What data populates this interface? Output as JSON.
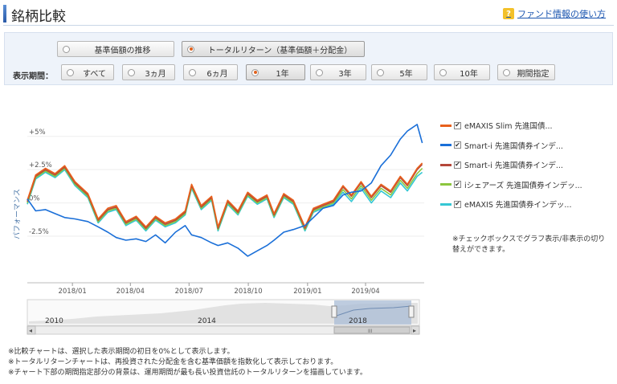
{
  "header": {
    "title": "銘柄比較",
    "help_label": "ファンド情報の使い方",
    "help_icon": "?"
  },
  "mode_options": [
    {
      "label": "基準価額の推移",
      "selected": false
    },
    {
      "label": "トータルリターン（基準価額＋分配金）",
      "selected": true
    }
  ],
  "period": {
    "label": "表示期間：",
    "options": [
      {
        "label": "すべて",
        "selected": false
      },
      {
        "label": "3ヵ月",
        "selected": false
      },
      {
        "label": "6ヵ月",
        "selected": false
      },
      {
        "label": "1年",
        "selected": true
      },
      {
        "label": "3年",
        "selected": false
      },
      {
        "label": "5年",
        "selected": false
      },
      {
        "label": "10年",
        "selected": false
      },
      {
        "label": "期間指定",
        "selected": false
      }
    ]
  },
  "legend": {
    "check_mark": "✔",
    "note": "※チェックボックスでグラフ表示/非表示の切り替えができます。"
  },
  "navigator": {
    "year_labels": [
      "2010",
      "2014",
      "2018"
    ],
    "scroll_left": "◂",
    "scroll_right": "▸",
    "scroll_thumb": "III"
  },
  "footnotes": [
    "※比較チャートは、選択した表示期間の初日を0%として表示します。",
    "※トータルリターンチャートは、再投資された分配金を含む基準価額を指数化して表示しております。",
    "※チャート下部の期間指定部分の背景は、運用期間が最も長い投資信託のトータルリターンを描画しています。"
  ],
  "chart_data": {
    "type": "line",
    "ylabel": "パフォーマンス",
    "y_tick_labels": [
      "+5%",
      "+2.5%",
      "0%",
      "-2.5%"
    ],
    "y_ticks": [
      5,
      2.5,
      0,
      -2.5
    ],
    "ylim": [
      -6.0,
      7.4
    ],
    "x_tick_labels": [
      "2018/01",
      "2018/04",
      "2018/07",
      "2018/10",
      "2019/01",
      "2019/04"
    ],
    "x_ticks": [
      "2018-01-01",
      "2018-04-01",
      "2018-07-01",
      "2018-10-01",
      "2019-01-01",
      "2019-04-01"
    ],
    "xlim": [
      "2017-10-23",
      "2019-07-01"
    ],
    "series": [
      {
        "name": "eMAXIS Slim 先進国債...",
        "color": "#e8601c",
        "points": [
          [
            "2017-10-23",
            0.2
          ],
          [
            "2017-11-05",
            2.1
          ],
          [
            "2017-11-20",
            2.6
          ],
          [
            "2017-12-05",
            2.2
          ],
          [
            "2017-12-20",
            2.8
          ],
          [
            "2018-01-05",
            1.6
          ],
          [
            "2018-01-25",
            0.7
          ],
          [
            "2018-02-10",
            -1.2
          ],
          [
            "2018-02-25",
            -0.4
          ],
          [
            "2018-03-10",
            -0.2
          ],
          [
            "2018-03-25",
            -1.4
          ],
          [
            "2018-04-10",
            -1.0
          ],
          [
            "2018-04-25",
            -1.8
          ],
          [
            "2018-05-10",
            -1.0
          ],
          [
            "2018-05-25",
            -1.5
          ],
          [
            "2018-06-10",
            -1.2
          ],
          [
            "2018-06-25",
            -0.6
          ],
          [
            "2018-07-05",
            1.4
          ],
          [
            "2018-07-20",
            -0.2
          ],
          [
            "2018-08-05",
            0.5
          ],
          [
            "2018-08-15",
            -1.8
          ],
          [
            "2018-08-30",
            0.2
          ],
          [
            "2018-09-15",
            -0.6
          ],
          [
            "2018-09-30",
            0.8
          ],
          [
            "2018-10-15",
            0.2
          ],
          [
            "2018-10-30",
            0.6
          ],
          [
            "2018-11-10",
            -0.8
          ],
          [
            "2018-11-25",
            0.7
          ],
          [
            "2018-12-10",
            0.2
          ],
          [
            "2018-12-28",
            -1.8
          ],
          [
            "2019-01-10",
            -0.4
          ],
          [
            "2019-01-25",
            -0.1
          ],
          [
            "2019-02-10",
            0.2
          ],
          [
            "2019-02-25",
            1.3
          ],
          [
            "2019-03-10",
            0.6
          ],
          [
            "2019-03-25",
            1.6
          ],
          [
            "2019-04-10",
            0.5
          ],
          [
            "2019-04-25",
            1.4
          ],
          [
            "2019-05-10",
            0.9
          ],
          [
            "2019-05-25",
            2.0
          ],
          [
            "2019-06-05",
            1.4
          ],
          [
            "2019-06-20",
            2.6
          ],
          [
            "2019-06-28",
            3.0
          ]
        ]
      },
      {
        "name": "Smart-i 先進国債券インデ...",
        "color": "#1a6fd8",
        "points": [
          [
            "2017-10-23",
            0.3
          ],
          [
            "2017-11-05",
            -0.6
          ],
          [
            "2017-11-20",
            -0.5
          ],
          [
            "2017-12-05",
            -0.8
          ],
          [
            "2017-12-20",
            -1.1
          ],
          [
            "2018-01-05",
            -1.2
          ],
          [
            "2018-01-25",
            -1.4
          ],
          [
            "2018-02-10",
            -1.8
          ],
          [
            "2018-02-25",
            -2.2
          ],
          [
            "2018-03-10",
            -2.6
          ],
          [
            "2018-03-25",
            -2.8
          ],
          [
            "2018-04-10",
            -2.7
          ],
          [
            "2018-04-25",
            -2.9
          ],
          [
            "2018-05-10",
            -2.4
          ],
          [
            "2018-05-25",
            -3.0
          ],
          [
            "2018-06-10",
            -2.2
          ],
          [
            "2018-06-25",
            -1.7
          ],
          [
            "2018-07-05",
            -2.4
          ],
          [
            "2018-07-20",
            -2.6
          ],
          [
            "2018-08-05",
            -3.0
          ],
          [
            "2018-08-15",
            -3.2
          ],
          [
            "2018-08-30",
            -3.0
          ],
          [
            "2018-09-15",
            -3.4
          ],
          [
            "2018-09-30",
            -4.0
          ],
          [
            "2018-10-15",
            -3.6
          ],
          [
            "2018-10-30",
            -3.2
          ],
          [
            "2018-11-10",
            -2.8
          ],
          [
            "2018-11-25",
            -2.2
          ],
          [
            "2018-12-10",
            -2.0
          ],
          [
            "2018-12-28",
            -1.7
          ],
          [
            "2019-01-10",
            -1.1
          ],
          [
            "2019-01-25",
            -0.4
          ],
          [
            "2019-02-10",
            -0.2
          ],
          [
            "2019-02-25",
            0.6
          ],
          [
            "2019-03-10",
            0.8
          ],
          [
            "2019-03-25",
            0.9
          ],
          [
            "2019-04-10",
            1.5
          ],
          [
            "2019-04-25",
            2.8
          ],
          [
            "2019-05-10",
            3.6
          ],
          [
            "2019-05-25",
            4.8
          ],
          [
            "2019-06-05",
            5.4
          ],
          [
            "2019-06-20",
            5.9
          ],
          [
            "2019-06-28",
            4.5
          ]
        ]
      },
      {
        "name": "Smart-i 先進国債券インデ...",
        "color": "#b5473a",
        "points": [
          [
            "2017-10-23",
            0.1
          ],
          [
            "2017-11-05",
            2.0
          ],
          [
            "2017-11-20",
            2.5
          ],
          [
            "2017-12-05",
            2.1
          ],
          [
            "2017-12-20",
            2.7
          ],
          [
            "2018-01-05",
            1.5
          ],
          [
            "2018-01-25",
            0.6
          ],
          [
            "2018-02-10",
            -1.3
          ],
          [
            "2018-02-25",
            -0.5
          ],
          [
            "2018-03-10",
            -0.3
          ],
          [
            "2018-03-25",
            -1.5
          ],
          [
            "2018-04-10",
            -1.1
          ],
          [
            "2018-04-25",
            -1.9
          ],
          [
            "2018-05-10",
            -1.1
          ],
          [
            "2018-05-25",
            -1.6
          ],
          [
            "2018-06-10",
            -1.3
          ],
          [
            "2018-06-25",
            -0.7
          ],
          [
            "2018-07-05",
            1.3
          ],
          [
            "2018-07-20",
            -0.3
          ],
          [
            "2018-08-05",
            0.4
          ],
          [
            "2018-08-15",
            -1.9
          ],
          [
            "2018-08-30",
            0.1
          ],
          [
            "2018-09-15",
            -0.7
          ],
          [
            "2018-09-30",
            0.7
          ],
          [
            "2018-10-15",
            0.1
          ],
          [
            "2018-10-30",
            0.5
          ],
          [
            "2018-11-10",
            -0.9
          ],
          [
            "2018-11-25",
            0.6
          ],
          [
            "2018-12-10",
            0.1
          ],
          [
            "2018-12-28",
            -1.9
          ],
          [
            "2019-01-10",
            -0.5
          ],
          [
            "2019-01-25",
            -0.2
          ],
          [
            "2019-02-10",
            0.1
          ],
          [
            "2019-02-25",
            1.2
          ],
          [
            "2019-03-10",
            0.5
          ],
          [
            "2019-03-25",
            1.5
          ],
          [
            "2019-04-10",
            0.4
          ],
          [
            "2019-04-25",
            1.3
          ],
          [
            "2019-05-10",
            0.8
          ],
          [
            "2019-05-25",
            1.9
          ],
          [
            "2019-06-05",
            1.3
          ],
          [
            "2019-06-20",
            2.5
          ],
          [
            "2019-06-28",
            2.9
          ]
        ]
      },
      {
        "name": "iシェアーズ 先進国債券インデッ...",
        "color": "#8cc63e",
        "points": [
          [
            "2017-10-23",
            0.0
          ],
          [
            "2017-11-05",
            1.9
          ],
          [
            "2017-11-20",
            2.4
          ],
          [
            "2017-12-05",
            2.0
          ],
          [
            "2017-12-20",
            2.6
          ],
          [
            "2018-01-05",
            1.4
          ],
          [
            "2018-01-25",
            0.5
          ],
          [
            "2018-02-10",
            -1.4
          ],
          [
            "2018-02-25",
            -0.6
          ],
          [
            "2018-03-10",
            -0.4
          ],
          [
            "2018-03-25",
            -1.6
          ],
          [
            "2018-04-10",
            -1.2
          ],
          [
            "2018-04-25",
            -2.0
          ],
          [
            "2018-05-10",
            -1.2
          ],
          [
            "2018-05-25",
            -1.7
          ],
          [
            "2018-06-10",
            -1.4
          ],
          [
            "2018-06-25",
            -0.8
          ],
          [
            "2018-07-05",
            1.2
          ],
          [
            "2018-07-20",
            -0.4
          ],
          [
            "2018-08-05",
            0.3
          ],
          [
            "2018-08-15",
            -2.0
          ],
          [
            "2018-08-30",
            0.0
          ],
          [
            "2018-09-15",
            -0.8
          ],
          [
            "2018-09-30",
            0.6
          ],
          [
            "2018-10-15",
            0.0
          ],
          [
            "2018-10-30",
            0.4
          ],
          [
            "2018-11-10",
            -1.0
          ],
          [
            "2018-11-25",
            0.5
          ],
          [
            "2018-12-10",
            0.0
          ],
          [
            "2018-12-28",
            -2.0
          ],
          [
            "2019-01-10",
            -0.6
          ],
          [
            "2019-01-25",
            -0.3
          ],
          [
            "2019-02-10",
            0.0
          ],
          [
            "2019-02-25",
            1.0
          ],
          [
            "2019-03-10",
            0.3
          ],
          [
            "2019-03-25",
            1.3
          ],
          [
            "2019-04-10",
            0.2
          ],
          [
            "2019-04-25",
            1.1
          ],
          [
            "2019-05-10",
            0.6
          ],
          [
            "2019-05-25",
            1.7
          ],
          [
            "2019-06-05",
            1.1
          ],
          [
            "2019-06-20",
            2.2
          ],
          [
            "2019-06-28",
            2.6
          ]
        ]
      },
      {
        "name": "eMAXIS 先進国債券インデッ...",
        "color": "#35c7d4",
        "points": [
          [
            "2017-10-23",
            -0.1
          ],
          [
            "2017-11-05",
            1.8
          ],
          [
            "2017-11-20",
            2.3
          ],
          [
            "2017-12-05",
            1.9
          ],
          [
            "2017-12-20",
            2.5
          ],
          [
            "2018-01-05",
            1.3
          ],
          [
            "2018-01-25",
            0.4
          ],
          [
            "2018-02-10",
            -1.5
          ],
          [
            "2018-02-25",
            -0.7
          ],
          [
            "2018-03-10",
            -0.5
          ],
          [
            "2018-03-25",
            -1.7
          ],
          [
            "2018-04-10",
            -1.3
          ],
          [
            "2018-04-25",
            -2.1
          ],
          [
            "2018-05-10",
            -1.3
          ],
          [
            "2018-05-25",
            -1.8
          ],
          [
            "2018-06-10",
            -1.5
          ],
          [
            "2018-06-25",
            -0.9
          ],
          [
            "2018-07-05",
            1.1
          ],
          [
            "2018-07-20",
            -0.5
          ],
          [
            "2018-08-05",
            0.2
          ],
          [
            "2018-08-15",
            -2.1
          ],
          [
            "2018-08-30",
            -0.1
          ],
          [
            "2018-09-15",
            -0.9
          ],
          [
            "2018-09-30",
            0.5
          ],
          [
            "2018-10-15",
            -0.1
          ],
          [
            "2018-10-30",
            0.3
          ],
          [
            "2018-11-10",
            -1.1
          ],
          [
            "2018-11-25",
            0.4
          ],
          [
            "2018-12-10",
            -0.1
          ],
          [
            "2018-12-28",
            -2.1
          ],
          [
            "2019-01-10",
            -0.7
          ],
          [
            "2019-01-25",
            -0.4
          ],
          [
            "2019-02-10",
            -0.1
          ],
          [
            "2019-02-25",
            0.8
          ],
          [
            "2019-03-10",
            0.1
          ],
          [
            "2019-03-25",
            1.1
          ],
          [
            "2019-04-10",
            0.0
          ],
          [
            "2019-04-25",
            0.9
          ],
          [
            "2019-05-10",
            0.4
          ],
          [
            "2019-05-25",
            1.5
          ],
          [
            "2019-06-05",
            0.9
          ],
          [
            "2019-06-20",
            2.0
          ],
          [
            "2019-06-28",
            2.3
          ]
        ]
      }
    ]
  }
}
